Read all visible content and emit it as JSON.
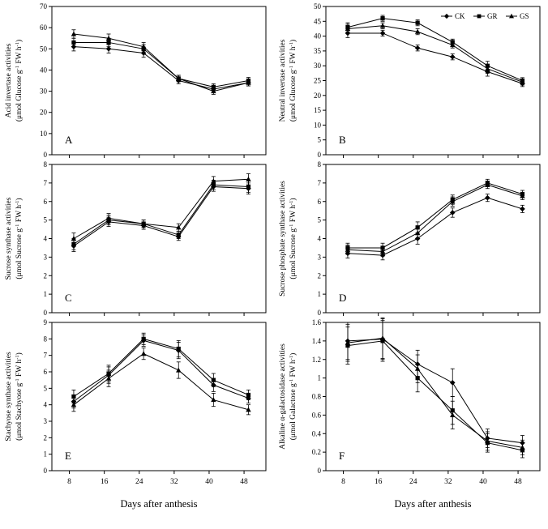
{
  "figure": {
    "xlabel": "Days after anthesis",
    "axis_color": "#000000",
    "background": "#ffffff"
  },
  "legend": {
    "position": "top-right-panel-B",
    "items": [
      {
        "label": "CK",
        "marker": "diamond"
      },
      {
        "label": "GR",
        "marker": "square"
      },
      {
        "label": "GS",
        "marker": "triangle"
      }
    ]
  },
  "chart_data": [
    {
      "id": "A",
      "type": "line",
      "panel_letter": "A",
      "ylabel_line1": "Acid invertase activities",
      "ylabel_line2": "(μmol Glucose g^-1 FW h^-1)",
      "ylim": [
        0,
        70
      ],
      "ystep": 10,
      "xticks": [
        8,
        16,
        24,
        32,
        40,
        48
      ],
      "x": [
        9,
        17,
        25,
        33,
        41,
        49
      ],
      "show_xaxis_labels": false,
      "show_legend": false,
      "series": [
        {
          "name": "CK",
          "marker": "diamond",
          "values": [
            51,
            50,
            48,
            35,
            31,
            34
          ],
          "err": [
            2,
            2,
            2,
            1.5,
            1.5,
            1.5
          ]
        },
        {
          "name": "GR",
          "marker": "square",
          "values": [
            53,
            53,
            50,
            36,
            32,
            35
          ],
          "err": [
            2,
            2,
            2,
            1.5,
            1.5,
            1.5
          ]
        },
        {
          "name": "GS",
          "marker": "triangle",
          "values": [
            57,
            55,
            51,
            36,
            30,
            34
          ],
          "err": [
            2,
            2,
            2,
            1.5,
            1.5,
            1.5
          ]
        }
      ]
    },
    {
      "id": "B",
      "type": "line",
      "panel_letter": "B",
      "ylabel_line1": "Neutral invertase activities",
      "ylabel_line2": "(μmol Glucose g^-1 FW h^-1)",
      "ylim": [
        0,
        50
      ],
      "ystep": 5,
      "xticks": [
        8,
        16,
        24,
        32,
        40,
        48
      ],
      "x": [
        9,
        17,
        25,
        33,
        41,
        49
      ],
      "show_xaxis_labels": false,
      "show_legend": true,
      "series": [
        {
          "name": "CK",
          "marker": "diamond",
          "values": [
            41,
            41,
            36,
            33,
            28,
            24
          ],
          "err": [
            1.5,
            1,
            1,
            1,
            1.5,
            1
          ]
        },
        {
          "name": "GR",
          "marker": "square",
          "values": [
            43,
            46,
            44.5,
            38,
            30,
            25
          ],
          "err": [
            1.5,
            1,
            1,
            1,
            1.5,
            1
          ]
        },
        {
          "name": "GS",
          "marker": "triangle",
          "values": [
            42.5,
            43.5,
            41.5,
            37,
            29,
            24.5
          ],
          "err": [
            1.5,
            1,
            1,
            1,
            1.5,
            1
          ]
        }
      ]
    },
    {
      "id": "C",
      "type": "line",
      "panel_letter": "C",
      "ylabel_line1": "Sucrose synthase activities",
      "ylabel_line2": "(μmol Sucrose g^-1 FW h^-1)",
      "ylim": [
        0,
        8
      ],
      "ystep": 1,
      "xticks": [
        8,
        16,
        24,
        32,
        40,
        48
      ],
      "x": [
        9,
        17,
        25,
        33,
        41,
        49
      ],
      "show_xaxis_labels": false,
      "show_legend": false,
      "series": [
        {
          "name": "CK",
          "marker": "diamond",
          "values": [
            3.6,
            4.9,
            4.7,
            4.1,
            6.8,
            6.7
          ],
          "err": [
            0.3,
            0.25,
            0.2,
            0.2,
            0.25,
            0.3
          ]
        },
        {
          "name": "GR",
          "marker": "square",
          "values": [
            3.7,
            5.0,
            4.8,
            4.2,
            6.9,
            6.8
          ],
          "err": [
            0.3,
            0.25,
            0.2,
            0.2,
            0.25,
            0.3
          ]
        },
        {
          "name": "GS",
          "marker": "triangle",
          "values": [
            4.0,
            5.1,
            4.8,
            4.6,
            7.1,
            7.2
          ],
          "err": [
            0.3,
            0.25,
            0.2,
            0.2,
            0.25,
            0.3
          ]
        }
      ]
    },
    {
      "id": "D",
      "type": "line",
      "panel_letter": "D",
      "ylabel_line1": "Sucrose phosphate synthase activities",
      "ylabel_line2": "(μmol Sucrose g^-1 FW h^-1)",
      "ylim": [
        0,
        8
      ],
      "ystep": 1,
      "xticks": [
        8,
        16,
        24,
        32,
        40,
        48
      ],
      "x": [
        9,
        17,
        25,
        33,
        41,
        49
      ],
      "show_xaxis_labels": false,
      "show_legend": false,
      "series": [
        {
          "name": "CK",
          "marker": "diamond",
          "values": [
            3.2,
            3.1,
            4.0,
            5.4,
            6.2,
            5.6
          ],
          "err": [
            0.25,
            0.25,
            0.3,
            0.25,
            0.2,
            0.2
          ]
        },
        {
          "name": "GR",
          "marker": "square",
          "values": [
            3.5,
            3.5,
            4.6,
            6.1,
            7.0,
            6.4
          ],
          "err": [
            0.25,
            0.25,
            0.3,
            0.25,
            0.2,
            0.2
          ]
        },
        {
          "name": "GS",
          "marker": "triangle",
          "values": [
            3.4,
            3.3,
            4.3,
            6.0,
            6.9,
            6.3
          ],
          "err": [
            0.25,
            0.25,
            0.3,
            0.25,
            0.2,
            0.2
          ]
        }
      ]
    },
    {
      "id": "E",
      "type": "line",
      "panel_letter": "E",
      "ylabel_line1": "Stachyose synthase activities",
      "ylabel_line2": "(μmol Stachyose g^-1 FW h^-1)",
      "ylim": [
        0,
        9
      ],
      "ystep": 1,
      "xticks": [
        8,
        16,
        24,
        32,
        40,
        48
      ],
      "x": [
        9,
        17,
        25,
        33,
        41,
        49
      ],
      "show_xaxis_labels": true,
      "show_legend": false,
      "series": [
        {
          "name": "CK",
          "marker": "diamond",
          "values": [
            4.2,
            5.8,
            7.9,
            7.3,
            5.2,
            4.4
          ],
          "err": [
            0.4,
            0.5,
            0.35,
            0.5,
            0.4,
            0.3
          ]
        },
        {
          "name": "GR",
          "marker": "square",
          "values": [
            4.5,
            5.9,
            8.0,
            7.4,
            5.5,
            4.6
          ],
          "err": [
            0.4,
            0.5,
            0.35,
            0.5,
            0.4,
            0.3
          ]
        },
        {
          "name": "GS",
          "marker": "triangle",
          "values": [
            4.0,
            5.6,
            7.1,
            6.1,
            4.3,
            3.7
          ],
          "err": [
            0.4,
            0.5,
            0.35,
            0.5,
            0.4,
            0.3
          ]
        }
      ]
    },
    {
      "id": "F",
      "type": "line",
      "panel_letter": "F",
      "ylabel_line1": "Alkaline α-galactosidase activities",
      "ylabel_line2": "(μmol Galactose g^-1 FW h^-1)",
      "ylim": [
        0,
        1.6
      ],
      "ystep": 0.2,
      "xticks": [
        8,
        16,
        24,
        32,
        40,
        48
      ],
      "x": [
        9,
        17,
        25,
        33,
        41,
        49
      ],
      "show_xaxis_labels": true,
      "show_legend": false,
      "series": [
        {
          "name": "CK",
          "marker": "diamond",
          "values": [
            1.4,
            1.42,
            1.15,
            0.95,
            0.35,
            0.3
          ],
          "err": [
            0.2,
            0.22,
            0.15,
            0.15,
            0.1,
            0.08
          ]
        },
        {
          "name": "GR",
          "marker": "square",
          "values": [
            1.35,
            1.4,
            1.0,
            0.65,
            0.3,
            0.22
          ],
          "err": [
            0.2,
            0.22,
            0.15,
            0.15,
            0.1,
            0.08
          ]
        },
        {
          "name": "GS",
          "marker": "triangle",
          "values": [
            1.38,
            1.43,
            1.1,
            0.6,
            0.32,
            0.25
          ],
          "err": [
            0.2,
            0.22,
            0.15,
            0.15,
            0.1,
            0.08
          ]
        }
      ]
    }
  ]
}
